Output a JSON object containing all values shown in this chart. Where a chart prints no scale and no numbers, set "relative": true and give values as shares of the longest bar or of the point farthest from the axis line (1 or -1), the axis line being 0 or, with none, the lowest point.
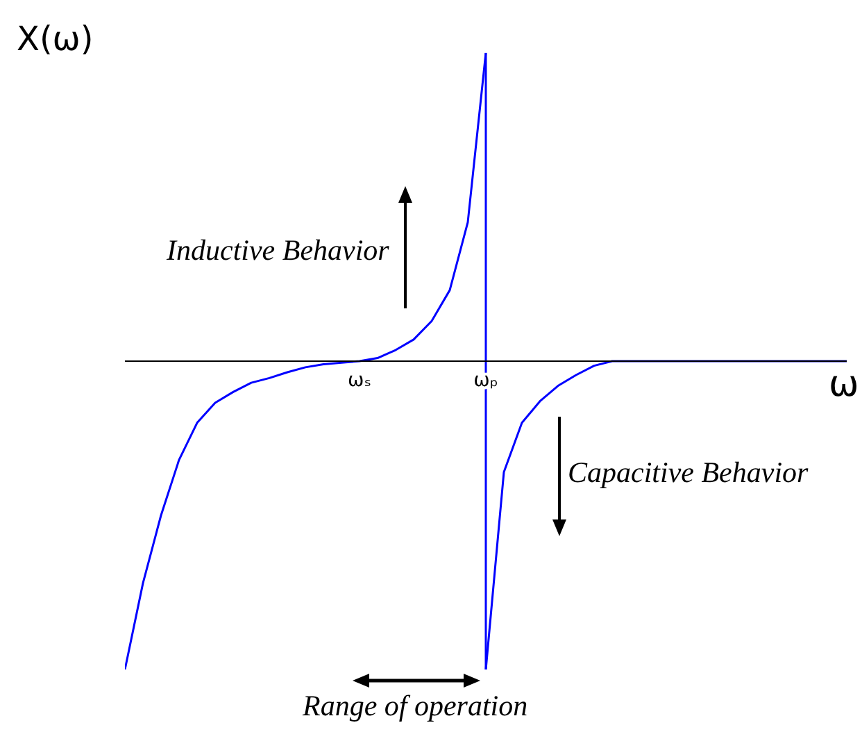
{
  "chart_data": {
    "type": "line",
    "relative": true,
    "xlabel": "ω",
    "ylabel": "X(ω)",
    "categories": [
      null,
      null,
      null,
      null,
      null,
      null,
      null,
      null,
      null,
      null,
      null,
      null,
      null,
      "ωₛ",
      null,
      null,
      null,
      null,
      null,
      null,
      "ωₚ",
      null,
      null,
      null,
      null,
      null,
      null,
      null,
      null,
      null,
      null,
      null,
      null,
      null,
      null,
      null,
      null,
      null,
      null,
      null,
      null
    ],
    "series": [
      {
        "color": "#0000ff",
        "values": [
          -1,
          -0.72,
          -0.5,
          -0.32,
          -0.2,
          -0.135,
          -0.1,
          -0.07,
          -0.055,
          -0.036,
          -0.02,
          -0.01,
          -0.005,
          0,
          0.01,
          0.036,
          0.07,
          0.13,
          0.23,
          0.45,
          1,
          null,
          null,
          null,
          null,
          null,
          null,
          null,
          null,
          null,
          null,
          null,
          null,
          null,
          null,
          null,
          null,
          null,
          null,
          null,
          null
        ]
      },
      {
        "color": "#0000ff",
        "values": [
          null,
          null,
          null,
          null,
          null,
          null,
          null,
          null,
          null,
          null,
          null,
          null,
          null,
          null,
          null,
          null,
          null,
          null,
          null,
          null,
          -1,
          -0.36,
          -0.2,
          -0.13,
          -0.08,
          -0.045,
          -0.015,
          0,
          0,
          0,
          0,
          0,
          0,
          0,
          0,
          0,
          0,
          0,
          0,
          0,
          0
        ]
      }
    ],
    "ref_lines": [
      {
        "axis": "x",
        "value": "ωₚ",
        "color": "#0000ff"
      }
    ],
    "annotations": [
      "Inductive Behavior",
      "Capacitive Behavior",
      "Range of operation"
    ],
    "marker": "none",
    "grid": false,
    "legend": false
  }
}
